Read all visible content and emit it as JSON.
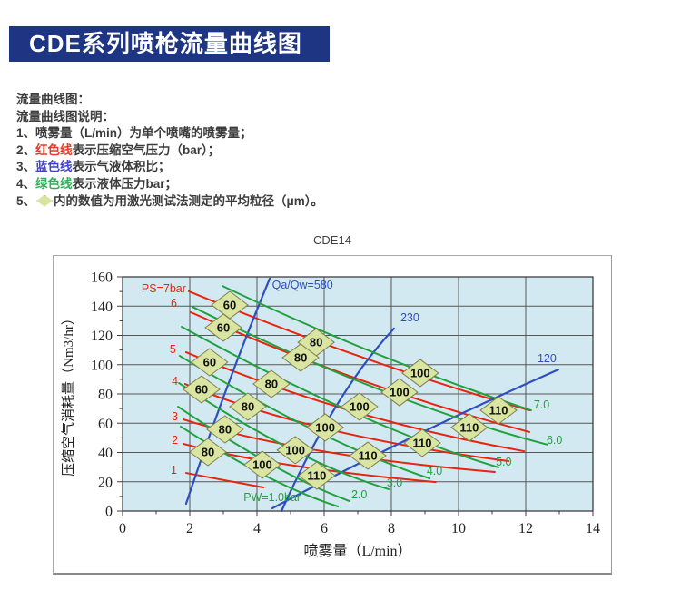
{
  "banner": {
    "title": "CDE系列喷枪流量曲线图",
    "bg_color": "#1d3583",
    "text_color": "#ffffff"
  },
  "notes": {
    "heading1": "流量曲线图：",
    "heading2": "流量曲线图说明：",
    "items": [
      {
        "segments": [
          {
            "t": "1、喷雾量（L/min）为单个喷嘴的喷雾量；"
          }
        ]
      },
      {
        "segments": [
          {
            "t": "2、"
          },
          {
            "t": "红色线",
            "c": "#e93a23"
          },
          {
            "t": "表示压缩空气压力（bar）；"
          }
        ]
      },
      {
        "segments": [
          {
            "t": "3、"
          },
          {
            "t": "蓝色线",
            "c": "#4242cc"
          },
          {
            "t": "表示气液体积比；"
          }
        ]
      },
      {
        "segments": [
          {
            "t": "4、"
          },
          {
            "t": "绿色线",
            "c": "#2fae54"
          },
          {
            "t": "表示液体压力bar；"
          }
        ]
      },
      {
        "segments": [
          {
            "t": "5、"
          },
          {
            "icon": "diamond-marker-icon"
          },
          {
            "t": "内的数值为用激光测试法测定的平均粒径（μm）。"
          }
        ]
      }
    ]
  },
  "chart_data": {
    "type": "line",
    "title": "CDE14",
    "xlabel": "喷雾量（L/min）",
    "ylabel": "压缩空气消耗量（Nm3/hr）",
    "xlim": [
      0,
      14
    ],
    "ylim": [
      0,
      160
    ],
    "xticks": [
      0,
      2,
      4,
      6,
      8,
      10,
      12,
      14
    ],
    "yticks": [
      0,
      20,
      40,
      60,
      80,
      100,
      120,
      140,
      160
    ],
    "grid": true,
    "plot_bg": "#d3e9f2",
    "grid_color": "#565656",
    "colors": {
      "air_pressure": "#e8240e",
      "ratio": "#2f4fc1",
      "liquid_pressure": "#21a13e"
    },
    "series": [
      {
        "group": "air-pressure-line",
        "color": "#e8240e",
        "label": "PS=7bar",
        "label_anchor": "end",
        "label_at": [
          1.89,
          149.5
        ],
        "q": [
          [
            1.97,
            150.1
          ],
          [
            7.16,
            101.1
          ],
          [
            12.11,
            68.8
          ]
        ]
      },
      {
        "group": "air-pressure-line",
        "color": "#e8240e",
        "label": "6",
        "label_anchor": "end",
        "label_at": [
          1.62,
          139.5
        ],
        "q": [
          [
            2.03,
            135.8
          ],
          [
            7.16,
            83.7
          ],
          [
            12.11,
            54.0
          ]
        ]
      },
      {
        "group": "air-pressure-line",
        "color": "#e8240e",
        "label": "5",
        "label_anchor": "end",
        "label_at": [
          1.59,
          107.9
        ],
        "q": [
          [
            1.89,
            108.5
          ],
          [
            6.62,
            62.6
          ],
          [
            11.95,
            40.9
          ]
        ]
      },
      {
        "group": "air-pressure-line",
        "color": "#e8240e",
        "label": "4",
        "label_anchor": "end",
        "label_at": [
          1.65,
          86.2
        ],
        "q": [
          [
            1.86,
            86.8
          ],
          [
            5.54,
            51.5
          ],
          [
            11.49,
            34.1
          ]
        ]
      },
      {
        "group": "air-pressure-line",
        "color": "#e8240e",
        "label": "3",
        "label_anchor": "end",
        "label_at": [
          1.65,
          62.0
        ],
        "q": [
          [
            1.81,
            62.6
          ],
          [
            5.27,
            37.8
          ],
          [
            11.08,
            26.7
          ]
        ]
      },
      {
        "group": "air-pressure-line",
        "color": "#e8240e",
        "label": "2",
        "label_anchor": "end",
        "label_at": [
          1.65,
          45.9
        ],
        "q": [
          [
            1.81,
            45.9
          ],
          [
            4.46,
            29.8
          ],
          [
            9.32,
            19.8
          ]
        ]
      },
      {
        "group": "air-pressure-line",
        "color": "#e8240e",
        "label": "1",
        "label_anchor": "end",
        "label_at": [
          1.62,
          25.4
        ],
        "q": [
          [
            1.89,
            26.0
          ],
          [
            3.03,
            21.1
          ],
          [
            4.19,
            16.1
          ]
        ]
      },
      {
        "group": "ratio-line",
        "color": "#2f4fc1",
        "label": "Qa/Qw=580",
        "label_anchor": "start",
        "label_at": [
          4.45,
          151.9
        ],
        "q": [
          [
            1.89,
            5.0
          ],
          [
            3.11,
            88.7
          ],
          [
            4.38,
            158.8
          ]
        ]
      },
      {
        "group": "ratio-line",
        "color": "#2f4fc1",
        "label": "230",
        "label_anchor": "start",
        "label_at": [
          8.27,
          129.6
        ],
        "q": [
          [
            4.73,
            0.0
          ],
          [
            6.35,
            82.5
          ],
          [
            8.08,
            124.7
          ]
        ]
      },
      {
        "group": "ratio-line",
        "color": "#2f4fc1",
        "label": "120",
        "label_anchor": "start",
        "label_at": [
          12.35,
          101.7
        ],
        "q": [
          [
            4.46,
            1.9
          ],
          [
            8.51,
            51.5
          ],
          [
            12.97,
            96.7
          ]
        ]
      },
      {
        "group": "liquid-pressure-line",
        "color": "#21a13e",
        "label": "PW=1.0bar",
        "label_anchor": "start",
        "label_at": [
          3.6,
          6.8
        ],
        "q": [
          [
            1.73,
            57.7
          ],
          [
            4.46,
            17.4
          ],
          [
            6.41,
            3.1
          ]
        ]
      },
      {
        "group": "liquid-pressure-line",
        "color": "#21a13e",
        "label": "2.0",
        "label_anchor": "start",
        "label_at": [
          6.81,
          8.7
        ],
        "q": [
          [
            1.65,
            71.3
          ],
          [
            4.73,
            23.6
          ],
          [
            6.76,
            6.8
          ]
        ]
      },
      {
        "group": "liquid-pressure-line",
        "color": "#21a13e",
        "label": "3.0",
        "label_anchor": "start",
        "label_at": [
          7.86,
          16.7
        ],
        "q": [
          [
            1.68,
            87.4
          ],
          [
            5.27,
            32.9
          ],
          [
            7.92,
            14.9
          ]
        ]
      },
      {
        "group": "liquid-pressure-line",
        "color": "#21a13e",
        "label": "4.0",
        "label_anchor": "start",
        "label_at": [
          9.05,
          24.8
        ],
        "q": [
          [
            1.7,
            106.0
          ],
          [
            6.08,
            45.3
          ],
          [
            9.14,
            22.3
          ]
        ]
      },
      {
        "group": "liquid-pressure-line",
        "color": "#21a13e",
        "label": "5.0",
        "label_anchor": "start",
        "label_at": [
          11.11,
          31.0
        ],
        "q": [
          [
            1.76,
            125.9
          ],
          [
            7.16,
            57.7
          ],
          [
            11.19,
            29.8
          ]
        ]
      },
      {
        "group": "liquid-pressure-line",
        "color": "#21a13e",
        "label": "6.0",
        "label_anchor": "start",
        "label_at": [
          12.62,
          45.9
        ],
        "q": [
          [
            2.08,
            139.5
          ],
          [
            7.97,
            73.2
          ],
          [
            12.65,
            45.3
          ]
        ]
      },
      {
        "group": "liquid-pressure-line",
        "color": "#21a13e",
        "label": "7.0",
        "label_anchor": "start",
        "label_at": [
          12.24,
          70.0
        ],
        "q": [
          [
            2.97,
            153.8
          ],
          [
            7.7,
            102.3
          ],
          [
            12.16,
            68.8
          ]
        ]
      }
    ],
    "markers_unit": "μm",
    "markers": [
      {
        "v": 60,
        "x": 3.19,
        "y": 140.8
      },
      {
        "v": 60,
        "x": 3.0,
        "y": 125.3
      },
      {
        "v": 60,
        "x": 2.59,
        "y": 101.7
      },
      {
        "v": 60,
        "x": 2.35,
        "y": 83.1
      },
      {
        "v": 80,
        "x": 5.76,
        "y": 115.3
      },
      {
        "v": 80,
        "x": 5.3,
        "y": 104.8
      },
      {
        "v": 80,
        "x": 4.43,
        "y": 86.8
      },
      {
        "v": 80,
        "x": 3.73,
        "y": 71.3
      },
      {
        "v": 80,
        "x": 3.05,
        "y": 55.8
      },
      {
        "v": 80,
        "x": 2.54,
        "y": 40.3
      },
      {
        "v": 100,
        "x": 8.86,
        "y": 94.3
      },
      {
        "v": 100,
        "x": 8.24,
        "y": 81.2
      },
      {
        "v": 100,
        "x": 7.05,
        "y": 71.3
      },
      {
        "v": 100,
        "x": 6.03,
        "y": 57.1
      },
      {
        "v": 100,
        "x": 5.14,
        "y": 41.6
      },
      {
        "v": 100,
        "x": 4.16,
        "y": 31.6
      },
      {
        "v": 110,
        "x": 11.19,
        "y": 68.8
      },
      {
        "v": 110,
        "x": 10.32,
        "y": 57.1
      },
      {
        "v": 110,
        "x": 8.92,
        "y": 46.5
      },
      {
        "v": 110,
        "x": 7.3,
        "y": 37.8
      },
      {
        "v": 110,
        "x": 5.78,
        "y": 24.2
      }
    ],
    "marker_style": {
      "fill": "#d9e5a0",
      "stroke": "#80804f"
    }
  }
}
